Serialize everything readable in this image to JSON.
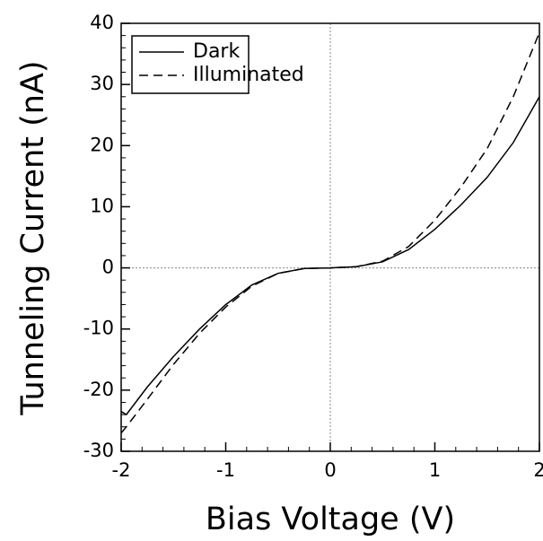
{
  "chart_data": {
    "type": "line",
    "xlabel": "Bias Voltage (V)",
    "ylabel": "Tunneling Current (nA)",
    "x": [
      -2,
      -1.95,
      -1.75,
      -1.5,
      -1.25,
      -1,
      -0.75,
      -0.5,
      -0.25,
      0,
      0.25,
      0.5,
      0.75,
      1,
      1.25,
      1.5,
      1.75,
      2
    ],
    "series": [
      {
        "name": "Dark",
        "color": "#000000",
        "dash": "solid",
        "values": [
          -23.5,
          -24,
          -19.5,
          -14.5,
          -10,
          -6,
          -2.8,
          -0.9,
          -0.1,
          0,
          0.2,
          1.0,
          3.0,
          6.3,
          10.3,
          14.8,
          20.5,
          28
        ]
      },
      {
        "name": "Illuminated",
        "color": "#000000",
        "dash": "dashed",
        "values": [
          -27,
          -26,
          -21.5,
          -15.8,
          -10.7,
          -6.4,
          -3.0,
          -0.9,
          -0.1,
          0,
          0.2,
          1.1,
          3.5,
          7.8,
          13.2,
          19.5,
          28,
          38.5
        ]
      }
    ],
    "xlim": [
      -2,
      2
    ],
    "xticks": [
      -2,
      -1,
      0,
      1,
      2
    ],
    "ylim": [
      -30,
      40
    ],
    "yticks": [
      -30,
      -20,
      -10,
      0,
      10,
      20,
      30,
      40
    ],
    "zero_lines": true,
    "legend": "upper left"
  }
}
